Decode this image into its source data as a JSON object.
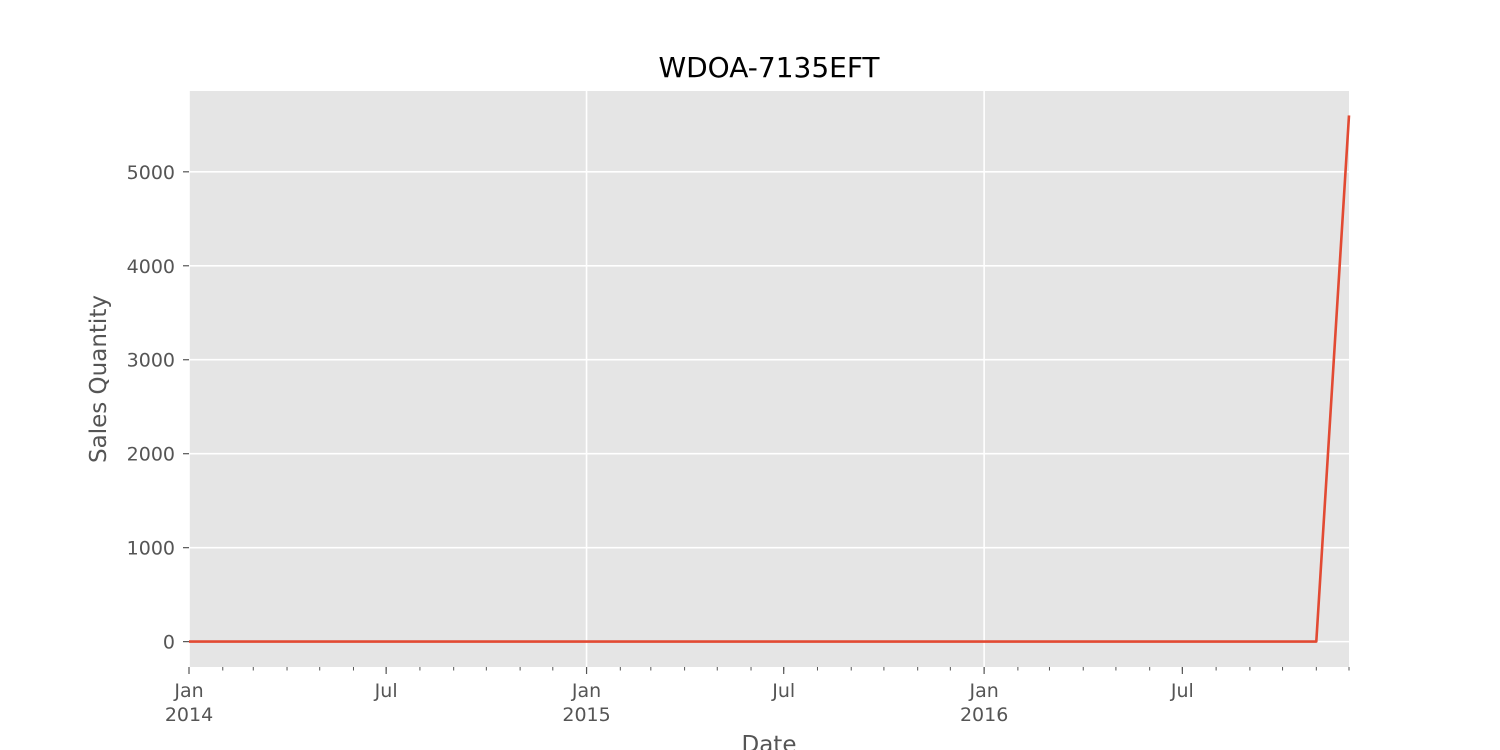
{
  "chart_data": {
    "type": "line",
    "title": "WDOA-7135EFT",
    "xlabel": "Date",
    "ylabel": "Sales Quantity",
    "xlim": [
      "2014-01-01",
      "2016-12-01"
    ],
    "ylim": [
      -270,
      5860
    ],
    "grid": true,
    "legend": "none",
    "colors": {
      "background": "#e5e5e5",
      "grid": "#ffffff",
      "line": "#e24a33",
      "tick": "#555555"
    },
    "x_major_ticks": [
      {
        "date": "2014-01-01",
        "line1": "Jan",
        "line2": "2014"
      },
      {
        "date": "2014-07-01",
        "line1": "Jul",
        "line2": ""
      },
      {
        "date": "2015-01-01",
        "line1": "Jan",
        "line2": "2015"
      },
      {
        "date": "2015-07-01",
        "line1": "Jul",
        "line2": ""
      },
      {
        "date": "2016-01-01",
        "line1": "Jan",
        "line2": "2016"
      },
      {
        "date": "2016-07-01",
        "line1": "Jul",
        "line2": ""
      }
    ],
    "y_ticks": [
      0,
      1000,
      2000,
      3000,
      4000,
      5000
    ],
    "y_tick_labels": [
      "0",
      "1000",
      "2000",
      "3000",
      "4000",
      "5000"
    ],
    "series": [
      {
        "x": [
          "2014-01-01",
          "2014-02-01",
          "2014-03-01",
          "2014-04-01",
          "2014-05-01",
          "2014-06-01",
          "2014-07-01",
          "2014-08-01",
          "2014-09-01",
          "2014-10-01",
          "2014-11-01",
          "2014-12-01",
          "2015-01-01",
          "2015-02-01",
          "2015-03-01",
          "2015-04-01",
          "2015-05-01",
          "2015-06-01",
          "2015-07-01",
          "2015-08-01",
          "2015-09-01",
          "2015-10-01",
          "2015-11-01",
          "2015-12-01",
          "2016-01-01",
          "2016-02-01",
          "2016-03-01",
          "2016-04-01",
          "2016-05-01",
          "2016-06-01",
          "2016-07-01",
          "2016-08-01",
          "2016-09-01",
          "2016-10-01",
          "2016-11-01",
          "2016-12-01"
        ],
        "y": [
          0,
          0,
          0,
          0,
          0,
          0,
          0,
          0,
          0,
          0,
          0,
          0,
          0,
          0,
          0,
          0,
          0,
          0,
          0,
          0,
          0,
          0,
          0,
          0,
          0,
          0,
          0,
          0,
          0,
          0,
          0,
          0,
          0,
          0,
          0,
          5600
        ]
      }
    ]
  }
}
